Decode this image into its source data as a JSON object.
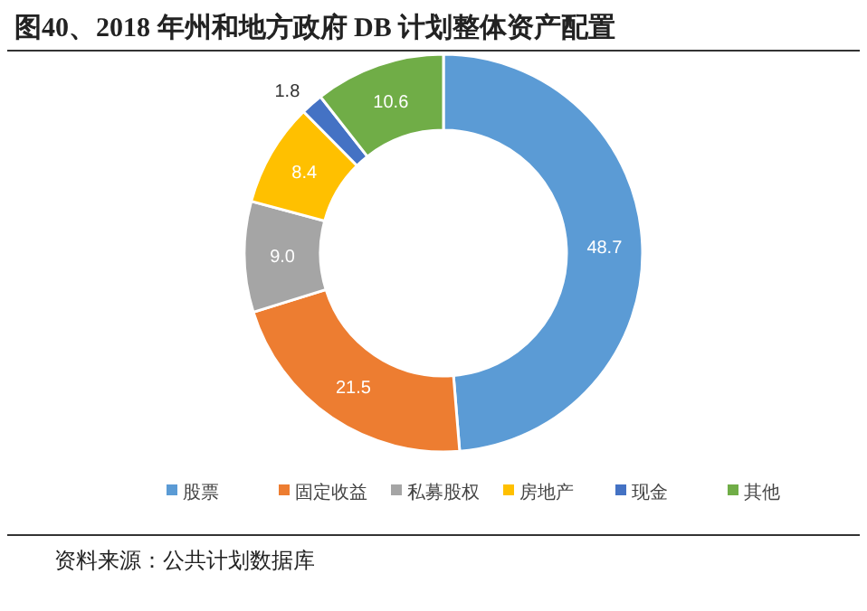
{
  "chart_data": {
    "type": "donut",
    "title": "图40、2018 年州和地方政府 DB 计划整体资产配置",
    "categories": [
      "股票",
      "固定收益",
      "私募股权",
      "房地产",
      "现金",
      "其他"
    ],
    "values": [
      48.7,
      21.5,
      9.0,
      8.4,
      1.8,
      10.6
    ],
    "value_labels": [
      "48.7",
      "21.5",
      "9.0",
      "8.4",
      "1.8",
      "10.6"
    ],
    "colors": [
      "#5b9bd5",
      "#ed7d31",
      "#a5a5a5",
      "#ffc000",
      "#4472c4",
      "#70ad47"
    ],
    "legend": "bottom",
    "annotations": [
      "资料来源：公共计划数据库"
    ]
  }
}
